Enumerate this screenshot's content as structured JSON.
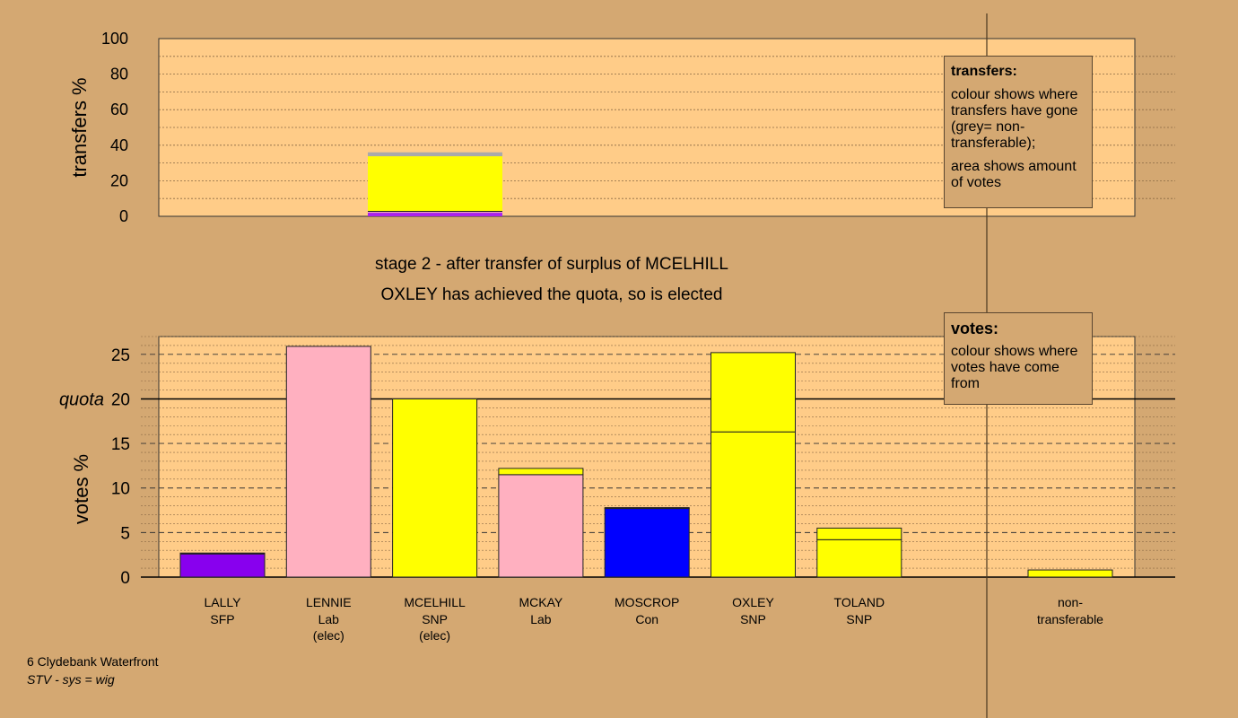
{
  "chart_data": [
    {
      "type": "bar",
      "stacked": true,
      "ylabel": "transfers %",
      "ylim": [
        0,
        100
      ],
      "yticks": [
        0,
        20,
        40,
        60,
        80,
        100
      ],
      "grid": true,
      "categories": [
        "LALLY",
        "LENNIE",
        "MCELHILL",
        "MCKAY",
        "MOSCROP",
        "OXLEY",
        "TOLAND",
        "non-transferable"
      ],
      "transfer_bar": {
        "source": "MCELHILL",
        "segments": [
          {
            "color": "#aa22ee",
            "value": 2.0
          },
          {
            "color": "#ffb0c0",
            "value": 0.5
          },
          {
            "color": "#0000ff",
            "value": 0.3
          },
          {
            "color": "#ffff00",
            "value": 31.0
          },
          {
            "color": "#aaaaaa",
            "value": 2.2
          }
        ]
      },
      "legend": {
        "title": "transfers:",
        "lines": [
          "colour shows where transfers have gone (grey= non-transferable);",
          "area shows amount of votes"
        ]
      }
    },
    {
      "type": "bar",
      "stacked": true,
      "ylabel": "votes %",
      "ylim": [
        0,
        27
      ],
      "yticks": [
        0,
        5,
        10,
        15,
        20,
        25
      ],
      "quota": 20,
      "quota_label": "quota",
      "grid": true,
      "candidates": [
        {
          "name": "LALLY",
          "party": "SFP",
          "status": "",
          "segments": [
            {
              "color": "#8800ee",
              "value": 2.6
            },
            {
              "color": "#ffff00",
              "value": 0.1
            }
          ]
        },
        {
          "name": "LENNIE",
          "party": "Lab",
          "status": "(elec)",
          "segments": [
            {
              "color": "#ffb0c0",
              "value": 25.9
            }
          ]
        },
        {
          "name": "MCELHILL",
          "party": "SNP",
          "status": "(elec)",
          "segments": [
            {
              "color": "#ffff00",
              "value": 20.0
            }
          ]
        },
        {
          "name": "MCKAY",
          "party": "Lab",
          "status": "",
          "segments": [
            {
              "color": "#ffb0c0",
              "value": 11.5
            },
            {
              "color": "#ffff00",
              "value": 0.7
            }
          ]
        },
        {
          "name": "MOSCROP",
          "party": "Con",
          "status": "",
          "segments": [
            {
              "color": "#0000ff",
              "value": 7.7
            },
            {
              "color": "#ffff00",
              "value": 0.1
            }
          ]
        },
        {
          "name": "OXLEY",
          "party": "SNP",
          "status": "",
          "segments": [
            {
              "color": "#ffff00",
              "value": 16.3
            },
            {
              "color": "#ffff00",
              "value": 8.9
            }
          ]
        },
        {
          "name": "TOLAND",
          "party": "SNP",
          "status": "",
          "segments": [
            {
              "color": "#ffff00",
              "value": 4.2
            },
            {
              "color": "#ffff00",
              "value": 1.3
            }
          ]
        }
      ],
      "nontransferable": {
        "label1": "non-",
        "label2": "transferable",
        "segments": [
          {
            "color": "#ffff00",
            "value": 0.8
          }
        ]
      },
      "legend": {
        "title": "votes:",
        "lines": [
          "colour shows where votes have come from"
        ]
      }
    }
  ],
  "captions": {
    "stage": "stage 2 - after transfer of surplus of MCELHILL",
    "elected": "OXLEY has achieved the quota, so is elected"
  },
  "footer": {
    "ward": "6 Clydebank Waterfront",
    "system": "STV - sys = wig"
  },
  "colors": {
    "background": "#d4a872",
    "plot_area": "#ffcc88"
  }
}
